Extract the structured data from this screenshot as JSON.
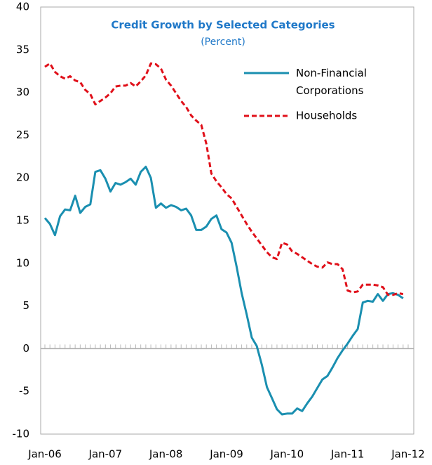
{
  "chart_data": {
    "type": "line",
    "title": "Credit Growth by Selected Categories",
    "subtitle": "(Percent)",
    "categories": [
      "Jan-06",
      null,
      null,
      null,
      null,
      null,
      null,
      null,
      null,
      null,
      null,
      null,
      "Jan-07",
      null,
      null,
      null,
      null,
      null,
      null,
      null,
      null,
      null,
      null,
      null,
      "Jan-08",
      null,
      null,
      null,
      null,
      null,
      null,
      null,
      null,
      null,
      null,
      null,
      "Jan-09",
      null,
      null,
      null,
      null,
      null,
      null,
      null,
      null,
      null,
      null,
      null,
      "Jan-10",
      null,
      null,
      null,
      null,
      null,
      null,
      null,
      null,
      null,
      null,
      null,
      "Jan-11",
      null,
      null,
      null,
      null,
      null,
      null,
      null,
      null,
      null,
      null,
      null,
      "Jan-12"
    ],
    "series": [
      {
        "name": "Non-Financial Corporations",
        "color": "#1a8fb0",
        "dashed": false,
        "values": [
          15.3,
          14.6,
          13.3,
          15.5,
          16.3,
          16.2,
          17.9,
          15.9,
          16.6,
          16.9,
          20.7,
          20.9,
          19.9,
          18.4,
          19.4,
          19.2,
          19.5,
          19.9,
          19.2,
          20.7,
          21.3,
          20.0,
          16.5,
          17.0,
          16.5,
          16.8,
          16.6,
          16.2,
          16.4,
          15.6,
          13.9,
          13.9,
          14.3,
          15.2,
          15.6,
          14.0,
          13.6,
          12.4,
          9.6,
          6.5,
          4.0,
          1.3,
          0.3,
          -1.9,
          -4.5,
          -5.8,
          -7.1,
          -7.7,
          -7.6,
          -7.6,
          -7.0,
          -7.3,
          -6.4,
          -5.6,
          -4.6,
          -3.6,
          -3.2,
          -2.2,
          -1.1,
          -0.2,
          0.6,
          1.5,
          2.3,
          5.4,
          5.6,
          5.5,
          6.4,
          5.6,
          6.4,
          6.5,
          6.3,
          5.9,
          null
        ]
      },
      {
        "name": "Households",
        "color": "#e0101a",
        "dashed": true,
        "values": [
          33.0,
          33.4,
          32.4,
          31.9,
          31.6,
          31.9,
          31.4,
          31.2,
          30.3,
          29.8,
          28.6,
          29.0,
          29.4,
          29.9,
          30.7,
          30.8,
          30.8,
          31.1,
          30.7,
          31.3,
          32.0,
          33.4,
          33.3,
          32.8,
          31.5,
          30.8,
          29.9,
          29.0,
          28.3,
          27.3,
          26.7,
          26.2,
          24.0,
          20.5,
          19.6,
          18.9,
          18.1,
          17.6,
          16.6,
          15.6,
          14.6,
          13.7,
          12.9,
          12.1,
          11.3,
          10.7,
          10.5,
          12.4,
          12.2,
          11.4,
          11.1,
          10.7,
          10.3,
          9.9,
          9.6,
          9.5,
          10.1,
          9.9,
          9.9,
          9.3,
          6.8,
          6.6,
          6.7,
          7.5,
          7.5,
          7.5,
          7.4,
          7.2,
          6.3,
          6.3,
          6.5,
          6.4,
          null
        ]
      }
    ],
    "ylim": [
      -10,
      40
    ],
    "yticks": [
      -10,
      -5,
      0,
      5,
      10,
      15,
      20,
      25,
      30,
      35,
      40
    ]
  }
}
